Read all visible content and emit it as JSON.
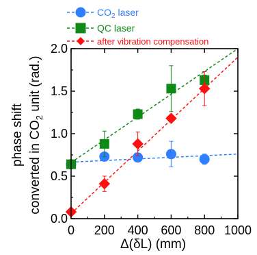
{
  "chart_data": {
    "type": "scatter",
    "title": "",
    "xlabel": "Δ(δL) (mm)",
    "ylabel_line1": "phase shift",
    "ylabel_line2_prefix": "converted in CO",
    "ylabel_line2_sub": "2",
    "ylabel_line2_suffix": " unit  (rad.)",
    "xlim": [
      0,
      1000
    ],
    "ylim": [
      0.0,
      2.0
    ],
    "xticks": [
      0,
      200,
      400,
      600,
      800,
      1000
    ],
    "xtick_labels": [
      "0",
      "200",
      "400",
      "600",
      "800",
      "1000"
    ],
    "yticks": [
      0.0,
      0.5,
      1.0,
      1.5,
      2.0
    ],
    "ytick_labels": [
      "0.0",
      "0.5",
      "1.0",
      "1.5",
      "2.0"
    ],
    "grid": false,
    "legend_position": "top-left, above plot",
    "series": [
      {
        "name_prefix": "CO",
        "name_sub": "2",
        "name_suffix": " laser",
        "color": "#2f7fff",
        "marker": "circle",
        "x": [
          0,
          200,
          400,
          600,
          800
        ],
        "y": [
          0.64,
          0.73,
          0.72,
          0.76,
          0.7
        ],
        "err": [
          0.04,
          0.04,
          0.04,
          0.15,
          0.06
        ],
        "fit": [
          [
            0,
            0.665
          ],
          [
            1000,
            0.76
          ]
        ]
      },
      {
        "name_prefix": "QC laser",
        "name_sub": "",
        "name_suffix": "",
        "color": "#0f8a16",
        "marker": "square",
        "x": [
          0,
          200,
          400,
          600,
          800
        ],
        "y": [
          0.64,
          0.88,
          1.23,
          1.53,
          1.63
        ],
        "err": [
          0.03,
          0.15,
          0.06,
          0.27,
          0.06
        ],
        "fit": [
          [
            0,
            0.66
          ],
          [
            1000,
            2.0
          ]
        ]
      },
      {
        "name_prefix": "after vibration compensation",
        "name_sub": "",
        "name_suffix": "",
        "color": "#ff1010",
        "marker": "diamond",
        "x": [
          0,
          200,
          400,
          600,
          800
        ],
        "y": [
          0.08,
          0.41,
          0.88,
          1.18,
          1.53
        ],
        "err": [
          0.0,
          0.09,
          0.14,
          0.0,
          0.2
        ],
        "fit": [
          [
            0,
            0.06
          ],
          [
            1000,
            1.9
          ]
        ]
      }
    ]
  }
}
